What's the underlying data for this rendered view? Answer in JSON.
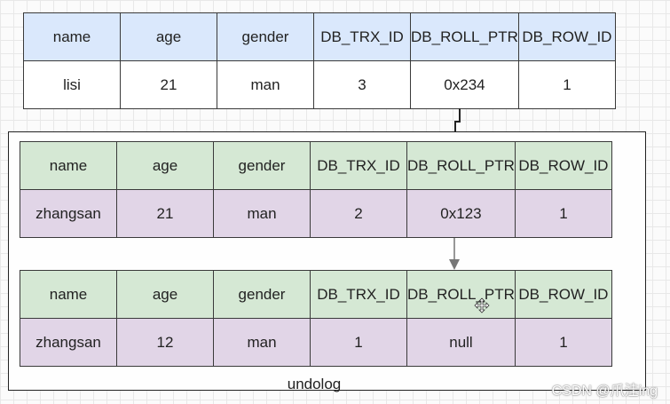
{
  "columns": [
    "name",
    "age",
    "gender",
    "DB_TRX_ID",
    "DB_ROLL_PTR",
    "DB_ROW_ID"
  ],
  "current_row": [
    "lisi",
    "21",
    "man",
    "3",
    "0x234",
    "1"
  ],
  "undo_rows": [
    [
      "zhangsan",
      "21",
      "man",
      "2",
      "0x123",
      "1"
    ],
    [
      "zhangsan",
      "12",
      "man",
      "1",
      "null",
      "1"
    ]
  ],
  "undo_label": "undolog",
  "watermark": "CSDN @爪洼ing",
  "colors": {
    "current_header": "#dae8fc",
    "current_row": "#ffffff",
    "undo_header": "#d5e8d4",
    "undo_row": "#e1d5e7",
    "connector": "#222222",
    "arrow": "#777777"
  }
}
